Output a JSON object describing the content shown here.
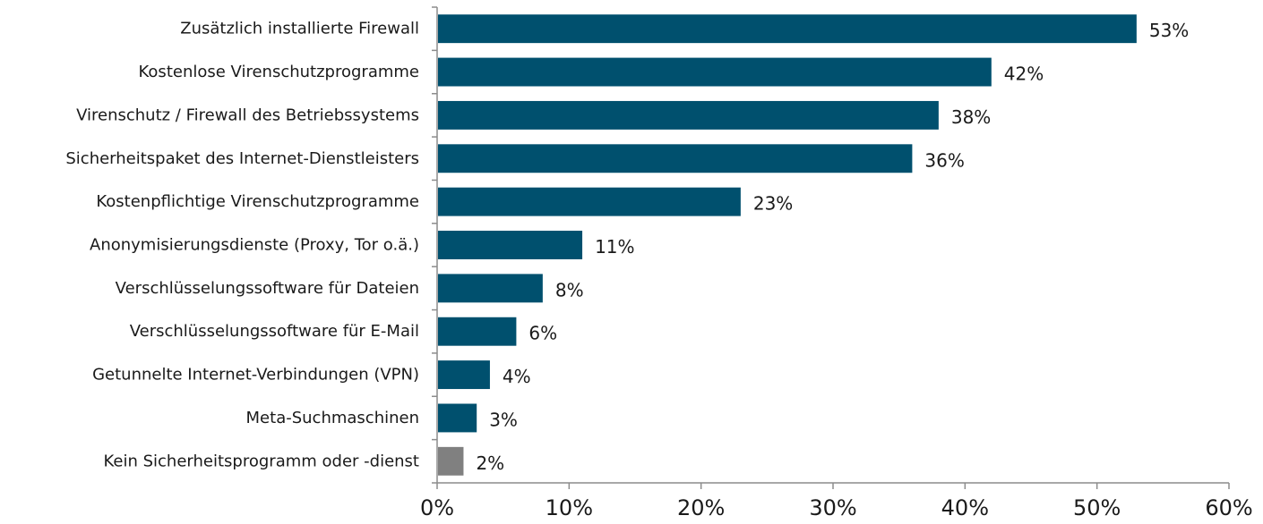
{
  "chart_data": {
    "type": "bar",
    "orientation": "horizontal",
    "title": "",
    "xlabel": "",
    "ylabel": "",
    "categories": [
      "Zusätzlich installierte Firewall",
      "Kostenlose Virenschutzprogramme",
      "Virenschutz / Firewall des Betriebssystems",
      "Sicherheitspaket des Internet-Dienstleisters",
      "Kostenpflichtige Virenschutzprogramme",
      "Anonymisierungsdienste (Proxy, Tor o.ä.)",
      "Verschlüsselungssoftware für Dateien",
      "Verschlüsselungssoftware für E-Mail",
      "Getunnelte Internet-Verbindungen (VPN)",
      "Meta-Suchmaschinen",
      "Kein Sicherheitsprogramm oder -dienst"
    ],
    "values": [
      53,
      42,
      38,
      36,
      23,
      11,
      8,
      6,
      4,
      3,
      2
    ],
    "value_labels": [
      "53%",
      "42%",
      "38%",
      "36%",
      "23%",
      "11%",
      "8%",
      "6%",
      "4%",
      "3%",
      "2%"
    ],
    "bar_colors": [
      "#00506e",
      "#00506e",
      "#00506e",
      "#00506e",
      "#00506e",
      "#00506e",
      "#00506e",
      "#00506e",
      "#00506e",
      "#00506e",
      "#808080"
    ],
    "xlim": [
      0,
      60
    ],
    "xticks": [
      0,
      10,
      20,
      30,
      40,
      50,
      60
    ],
    "xtick_labels": [
      "0%",
      "10%",
      "20%",
      "30%",
      "40%",
      "50%",
      "60%"
    ],
    "grid": false,
    "legend": "none"
  }
}
